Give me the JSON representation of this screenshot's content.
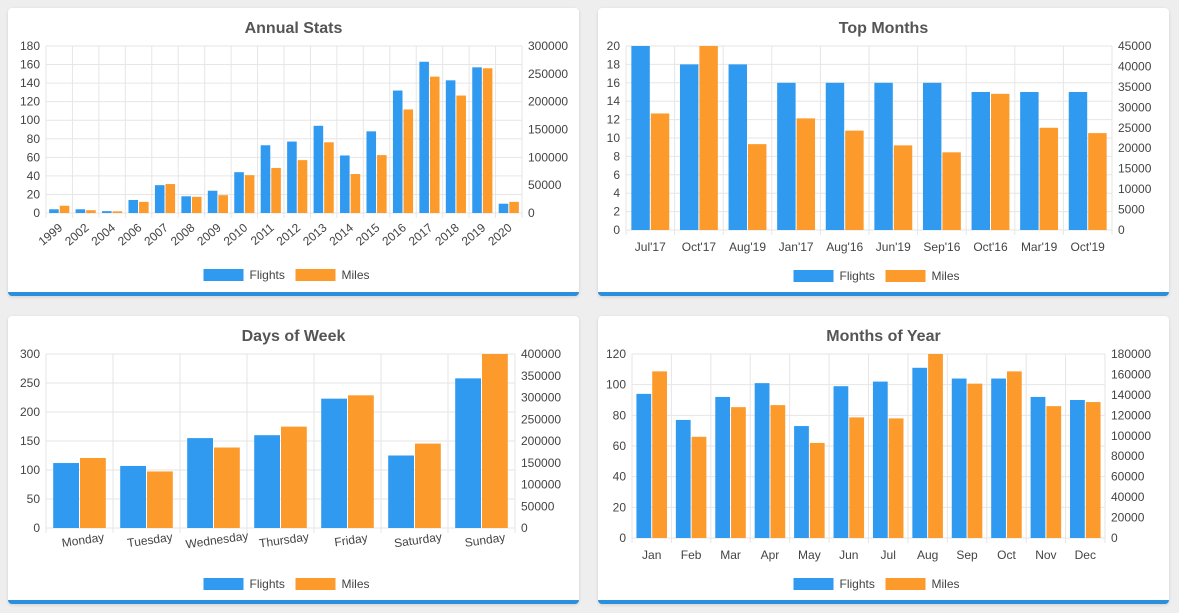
{
  "colors": {
    "flights": "#2f9af0",
    "miles": "#fd9a2c",
    "grid": "#e6e6e6",
    "axis": "#999999",
    "text": "#444444",
    "title": "#555555",
    "accent": "#2b8fdb"
  },
  "chart_data": [
    {
      "id": "annual",
      "type": "bar",
      "title": "Annual Stats",
      "categories": [
        "1999",
        "2002",
        "2004",
        "2006",
        "2007",
        "2008",
        "2009",
        "2010",
        "2011",
        "2012",
        "2013",
        "2014",
        "2015",
        "2016",
        "2017",
        "2018",
        "2019",
        "2020"
      ],
      "series": [
        {
          "name": "Flights",
          "axis": "left",
          "values": [
            4,
            4,
            2,
            14,
            30,
            18,
            24,
            44,
            73,
            77,
            94,
            62,
            88,
            132,
            163,
            143,
            157,
            10
          ]
        },
        {
          "name": "Miles",
          "axis": "right",
          "values": [
            13000,
            5000,
            3000,
            20000,
            52000,
            29000,
            32000,
            68000,
            81000,
            95000,
            127000,
            70000,
            104000,
            186000,
            245000,
            211000,
            260000,
            20000
          ]
        }
      ],
      "left_axis": {
        "min": 0,
        "max": 180,
        "ticks": [
          "0",
          "20",
          "40",
          "60",
          "80",
          "100",
          "120",
          "140",
          "160",
          "180"
        ]
      },
      "right_axis": {
        "min": 0,
        "max": 300000,
        "ticks": [
          "0",
          "50000",
          "100000",
          "150000",
          "200000",
          "250000",
          "300000"
        ]
      },
      "x_label_rotate": true,
      "grid": true,
      "legend_position": "bottom"
    },
    {
      "id": "topmonths",
      "type": "bar",
      "title": "Top Months",
      "categories": [
        "Jul'17",
        "Oct'17",
        "Aug'19",
        "Jan'17",
        "Aug'16",
        "Jun'19",
        "Sep'16",
        "Oct'16",
        "Mar'19",
        "Oct'19"
      ],
      "series": [
        {
          "name": "Flights",
          "axis": "left",
          "values": [
            20,
            18,
            18,
            16,
            16,
            16,
            16,
            15,
            15,
            15
          ]
        },
        {
          "name": "Miles",
          "axis": "right",
          "values": [
            28500,
            45000,
            21000,
            27300,
            24300,
            20700,
            19000,
            33300,
            25000,
            23700
          ]
        }
      ],
      "left_axis": {
        "min": 0,
        "max": 20,
        "ticks": [
          "0",
          "2",
          "4",
          "6",
          "8",
          "10",
          "12",
          "14",
          "16",
          "18",
          "20"
        ]
      },
      "right_axis": {
        "min": 0,
        "max": 45000,
        "ticks": [
          "0",
          "5000",
          "10000",
          "15000",
          "20000",
          "25000",
          "30000",
          "35000",
          "40000",
          "45000"
        ]
      },
      "x_label_rotate": false,
      "grid": true,
      "legend_position": "bottom"
    },
    {
      "id": "dow",
      "type": "bar",
      "title": "Days of Week",
      "categories": [
        "Monday",
        "Tuesday",
        "Wednesday",
        "Thursday",
        "Friday",
        "Saturday",
        "Sunday"
      ],
      "series": [
        {
          "name": "Flights",
          "axis": "left",
          "values": [
            112,
            107,
            155,
            160,
            223,
            125,
            258
          ]
        },
        {
          "name": "Miles",
          "axis": "right",
          "values": [
            161000,
            130000,
            185000,
            233000,
            305000,
            194000,
            400000
          ]
        }
      ],
      "left_axis": {
        "min": 0,
        "max": 300,
        "ticks": [
          "0",
          "50",
          "100",
          "150",
          "200",
          "250",
          "300"
        ]
      },
      "right_axis": {
        "min": 0,
        "max": 400000,
        "ticks": [
          "0",
          "50000",
          "100000",
          "150000",
          "200000",
          "250000",
          "300000",
          "350000",
          "400000"
        ]
      },
      "x_label_rotate": true,
      "grid": true,
      "legend_position": "bottom"
    },
    {
      "id": "moy",
      "type": "bar",
      "title": "Months of Year",
      "categories": [
        "Jan",
        "Feb",
        "Mar",
        "Apr",
        "May",
        "Jun",
        "Jul",
        "Aug",
        "Sep",
        "Oct",
        "Nov",
        "Dec"
      ],
      "series": [
        {
          "name": "Flights",
          "axis": "left",
          "values": [
            94,
            77,
            92,
            101,
            73,
            99,
            102,
            111,
            104,
            104,
            92,
            90
          ]
        },
        {
          "name": "Miles",
          "axis": "right",
          "values": [
            163000,
            99000,
            128000,
            130000,
            93000,
            118000,
            117000,
            180000,
            151000,
            163000,
            129000,
            133000
          ]
        }
      ],
      "left_axis": {
        "min": 0,
        "max": 120,
        "ticks": [
          "0",
          "20",
          "40",
          "60",
          "80",
          "100",
          "120"
        ]
      },
      "right_axis": {
        "min": 0,
        "max": 180000,
        "ticks": [
          "0",
          "20000",
          "40000",
          "60000",
          "80000",
          "100000",
          "120000",
          "140000",
          "160000",
          "180000"
        ]
      },
      "x_label_rotate": false,
      "grid": true,
      "legend_position": "bottom"
    }
  ]
}
